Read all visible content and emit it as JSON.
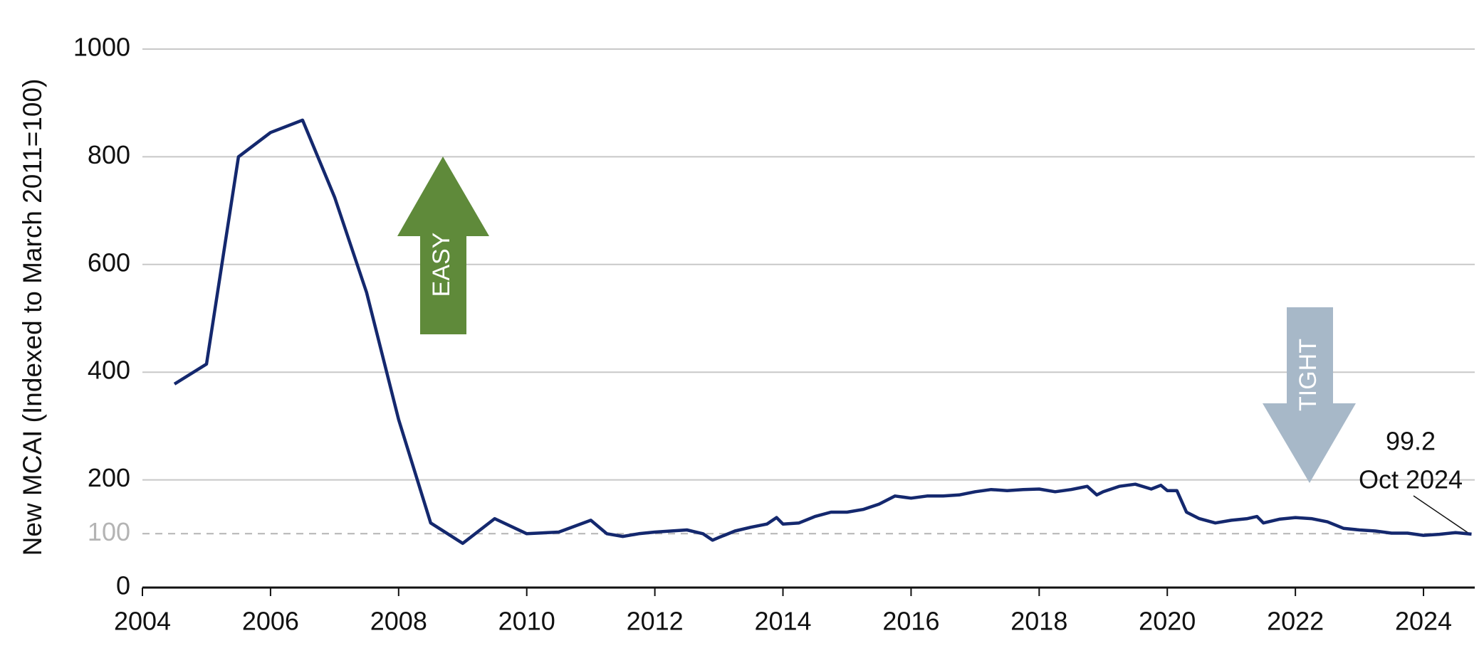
{
  "chart_data": {
    "type": "line",
    "y_label": "New MCAI (Indexed to March 2011=100)",
    "x": [
      2004.5,
      2005.0,
      2005.5,
      2006.0,
      2006.5,
      2007.0,
      2007.5,
      2008.0,
      2008.5,
      2009.0,
      2009.5,
      2010.0,
      2010.5,
      2011.0,
      2011.25,
      2011.5,
      2011.75,
      2012.0,
      2012.25,
      2012.5,
      2012.75,
      2012.9,
      2013.0,
      2013.25,
      2013.5,
      2013.75,
      2013.9,
      2014.0,
      2014.25,
      2014.5,
      2014.75,
      2015.0,
      2015.25,
      2015.5,
      2015.75,
      2016.0,
      2016.25,
      2016.5,
      2016.75,
      2017.0,
      2017.25,
      2017.5,
      2017.75,
      2018.0,
      2018.25,
      2018.5,
      2018.75,
      2018.9,
      2019.0,
      2019.25,
      2019.5,
      2019.75,
      2019.9,
      2020.0,
      2020.15,
      2020.3,
      2020.5,
      2020.75,
      2021.0,
      2021.25,
      2021.4,
      2021.5,
      2021.75,
      2022.0,
      2022.25,
      2022.5,
      2022.75,
      2023.0,
      2023.25,
      2023.5,
      2023.75,
      2024.0,
      2024.25,
      2024.5,
      2024.75
    ],
    "series": [
      {
        "name": "New MCAI",
        "color": "#14286e",
        "values": [
          378,
          415,
          800,
          845,
          868,
          725,
          548,
          312,
          120,
          82,
          128,
          100,
          103,
          125,
          100,
          95,
          100,
          103,
          105,
          107,
          100,
          88,
          93,
          105,
          112,
          118,
          130,
          118,
          120,
          132,
          140,
          140,
          145,
          155,
          170,
          166,
          170,
          170,
          172,
          178,
          182,
          180,
          182,
          183,
          178,
          182,
          188,
          172,
          178,
          188,
          192,
          183,
          190,
          180,
          180,
          140,
          128,
          120,
          125,
          128,
          132,
          120,
          127,
          130,
          128,
          122,
          110,
          107,
          105,
          101,
          101,
          97,
          99,
          102,
          99.2
        ]
      }
    ],
    "xlim": [
      2004,
      2024.8
    ],
    "xticks": [
      2004,
      2006,
      2008,
      2010,
      2012,
      2014,
      2016,
      2018,
      2020,
      2022,
      2024
    ],
    "ylim": [
      0,
      1000
    ],
    "yticks": [
      0,
      100,
      200,
      400,
      600,
      800,
      1000
    ],
    "grid": true,
    "reference_line": {
      "value": 100,
      "color": "#b4b4b4",
      "style": "dashed"
    },
    "annotations": {
      "easy": "EASY",
      "tight": "TIGHT",
      "last_value": "99.2",
      "last_date": "Oct 2024"
    }
  }
}
